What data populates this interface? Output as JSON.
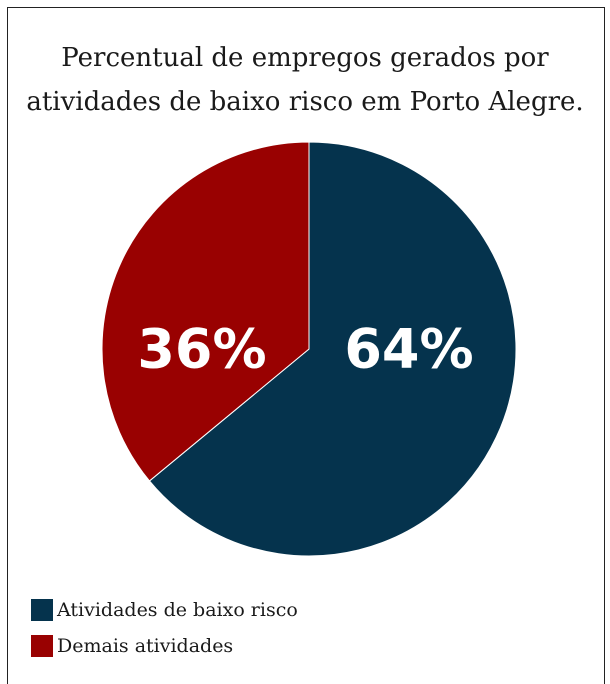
{
  "chart_data": {
    "type": "pie",
    "title_lines": [
      "Percentual de empregos gerados por",
      "atividades de baixo risco em Porto Alegre."
    ],
    "categories": [
      "Atividades de baixo risco",
      "Demais atividades"
    ],
    "values": [
      64,
      36
    ],
    "labels": [
      "64%",
      "36%"
    ],
    "colors": [
      "#05334d",
      "#990101"
    ],
    "legend_position": "bottom-left"
  }
}
